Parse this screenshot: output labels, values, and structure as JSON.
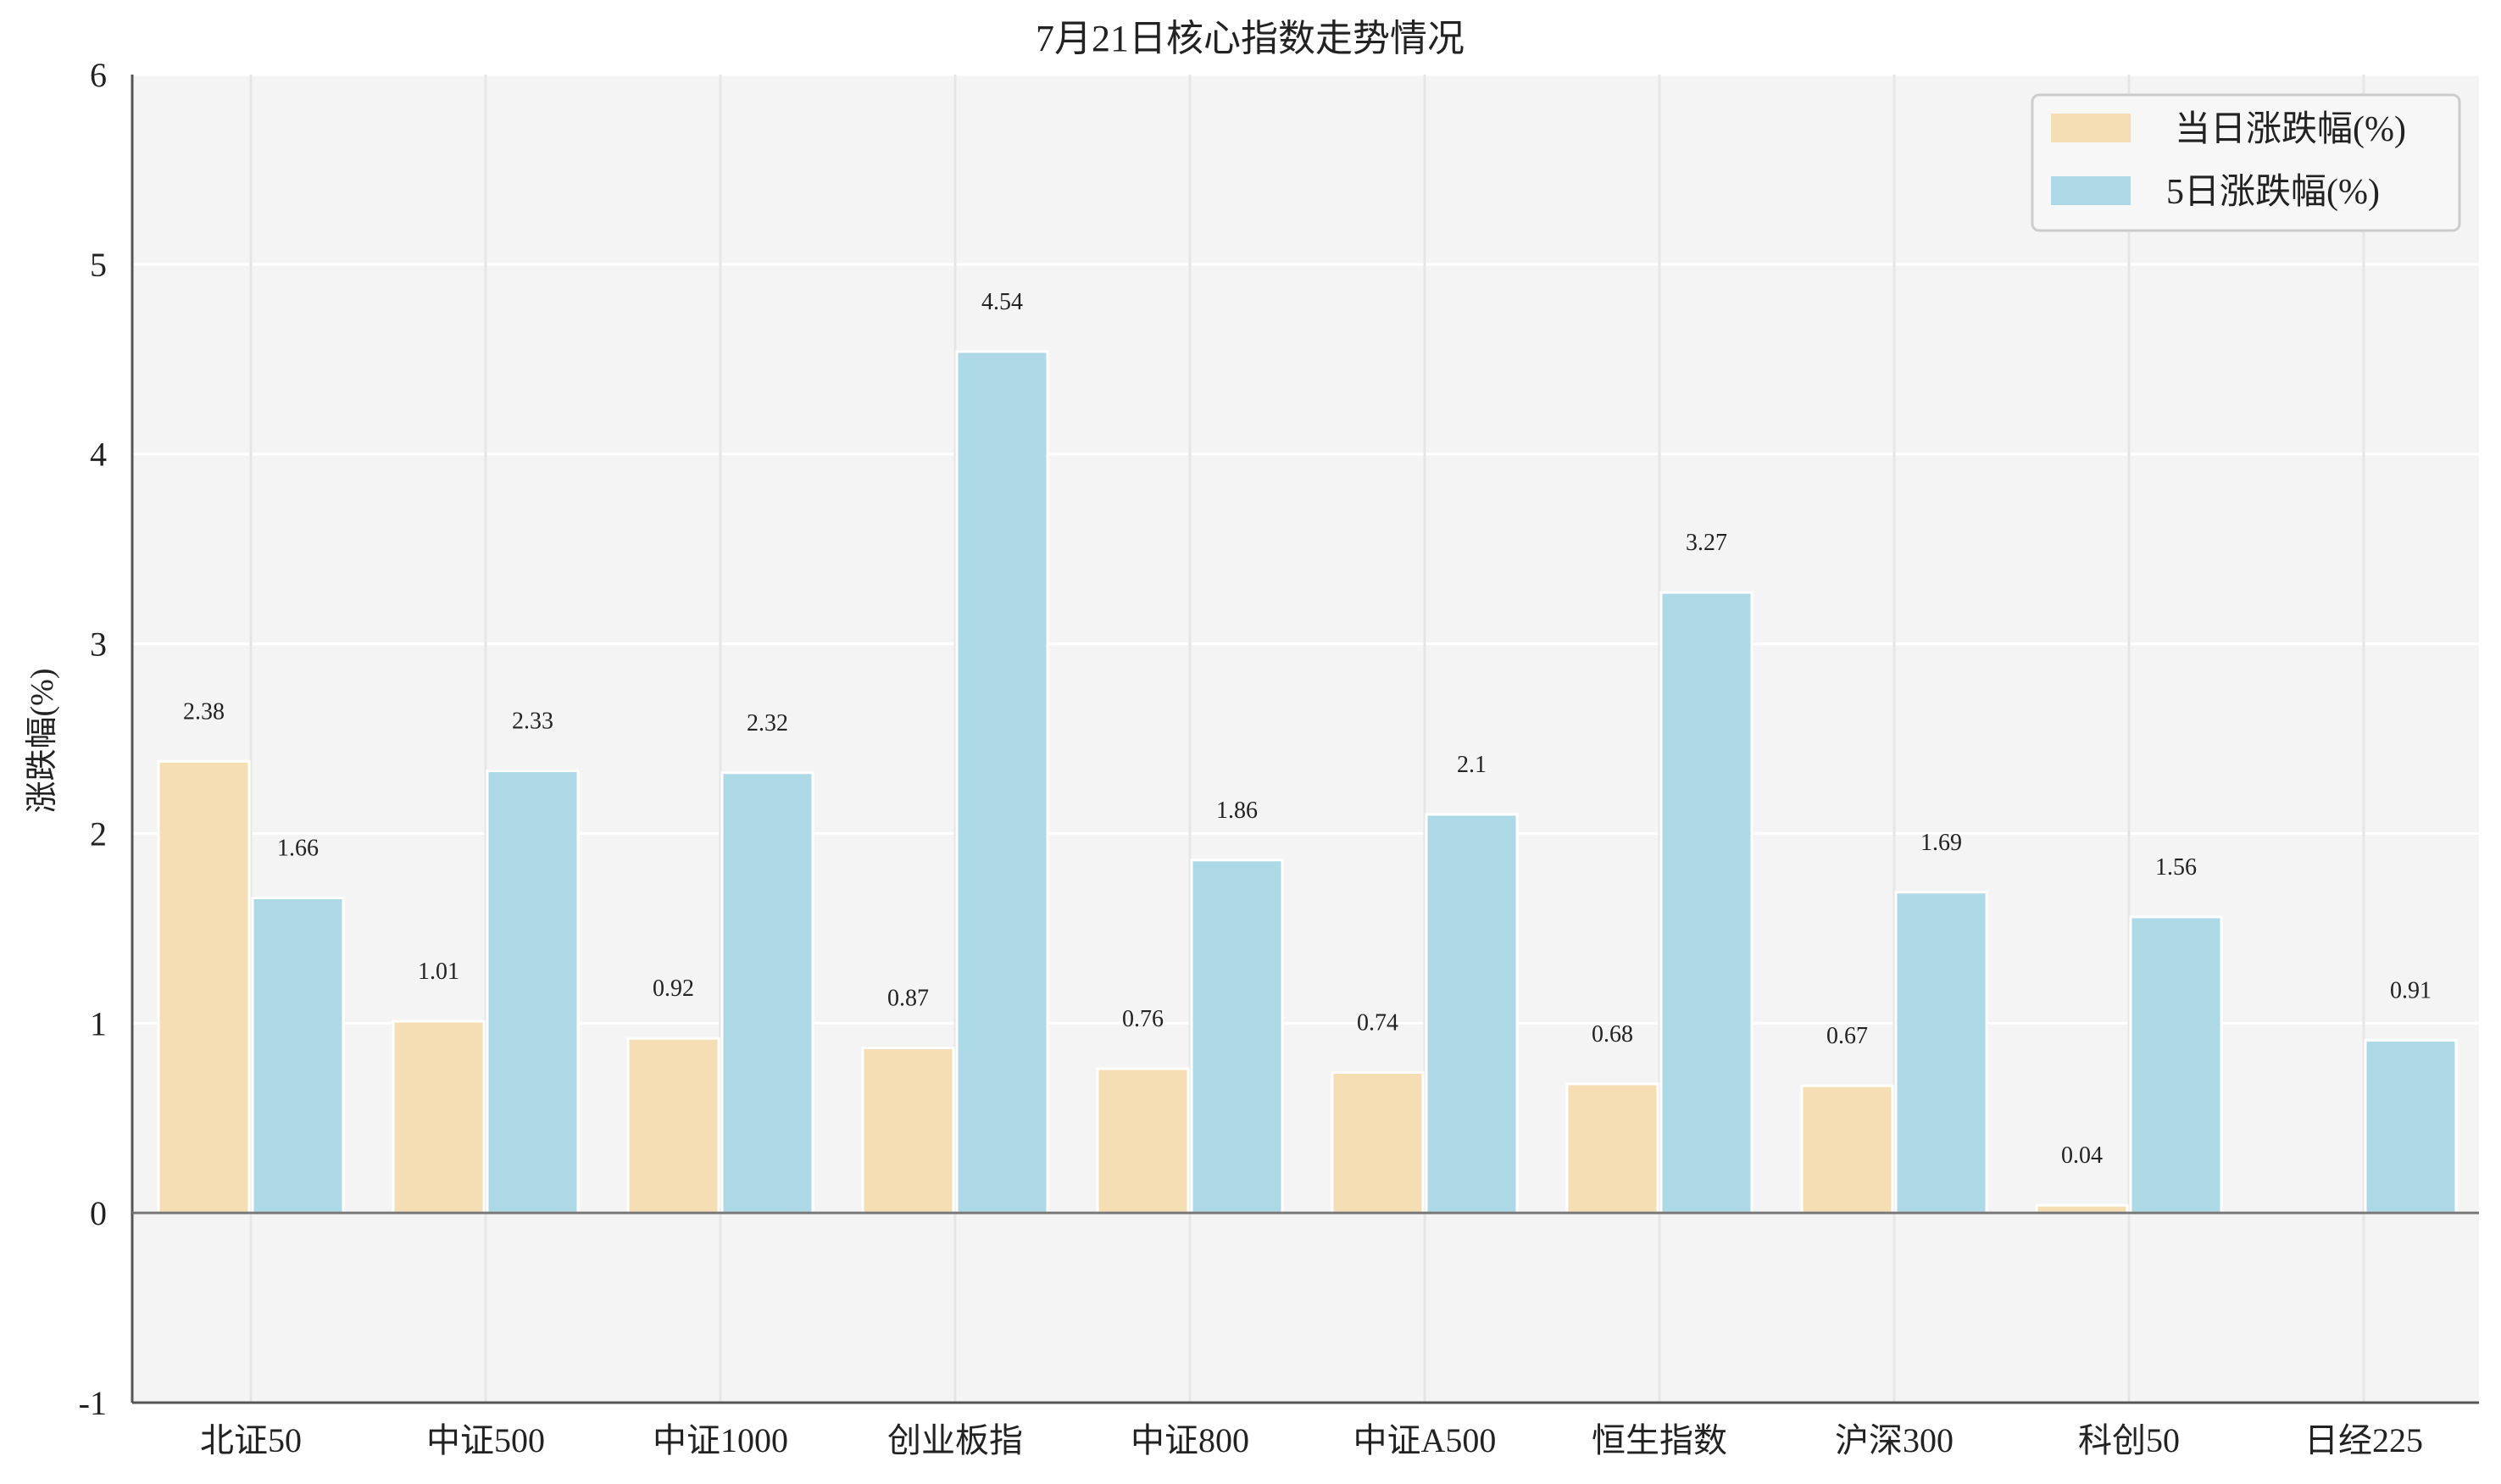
{
  "chart_data": {
    "type": "bar",
    "title": "7月21日核心指数走势情况",
    "ylabel": "涨跌幅(%)",
    "xlabel": "",
    "ylim": [
      -1,
      6
    ],
    "yticks": [
      -1,
      0,
      1,
      2,
      3,
      4,
      5,
      6
    ],
    "grid": true,
    "legend_position": "top-right",
    "categories": [
      "北证50",
      "中证500",
      "中证1000",
      "创业板指",
      "中证800",
      "中证A500",
      "恒生指数",
      "沪深300",
      "科创50",
      "日经225"
    ],
    "series": [
      {
        "name": "当日涨跌幅(%)",
        "color": "#f5deb3",
        "values": [
          2.38,
          1.01,
          0.92,
          0.87,
          0.76,
          0.74,
          0.68,
          0.67,
          0.04,
          null
        ],
        "labels": [
          "2.38",
          "1.01",
          "0.92",
          "0.87",
          "0.76",
          "0.74",
          "0.68",
          "0.67",
          "0.04",
          ""
        ]
      },
      {
        "name": "5日涨跌幅(%)",
        "color": "#add8e6",
        "values": [
          1.66,
          2.33,
          2.32,
          4.54,
          1.86,
          2.1,
          3.27,
          1.69,
          1.56,
          0.91
        ],
        "labels": [
          "1.66",
          "2.33",
          "2.32",
          "4.54",
          "1.86",
          "2.1",
          "3.27",
          "1.69",
          "1.56",
          "0.91"
        ]
      }
    ],
    "colors": {
      "plot_background": "#f4f4f4",
      "grid": "#ffffff",
      "axis": "#555555",
      "zero_line": "#777777"
    }
  }
}
